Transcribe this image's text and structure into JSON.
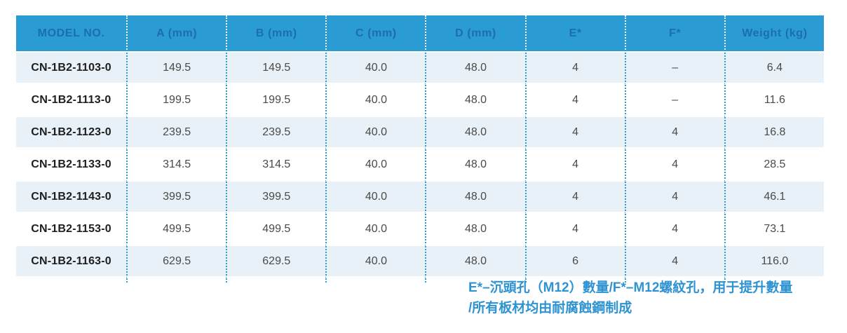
{
  "table": {
    "columns": [
      "MODEL NO.",
      "A (mm)",
      "B (mm)",
      "C (mm)",
      "D (mm)",
      "E*",
      "F*",
      "Weight (kg)"
    ],
    "rows": [
      [
        "CN-1B2-1103-0",
        "149.5",
        "149.5",
        "40.0",
        "48.0",
        "4",
        "–",
        "6.4"
      ],
      [
        "CN-1B2-1113-0",
        "199.5",
        "199.5",
        "40.0",
        "48.0",
        "4",
        "–",
        "11.6"
      ],
      [
        "CN-1B2-1123-0",
        "239.5",
        "239.5",
        "40.0",
        "48.0",
        "4",
        "4",
        "16.8"
      ],
      [
        "CN-1B2-1133-0",
        "314.5",
        "314.5",
        "40.0",
        "48.0",
        "4",
        "4",
        "28.5"
      ],
      [
        "CN-1B2-1143-0",
        "399.5",
        "399.5",
        "40.0",
        "48.0",
        "4",
        "4",
        "46.1"
      ],
      [
        "CN-1B2-1153-0",
        "499.5",
        "499.5",
        "40.0",
        "48.0",
        "4",
        "4",
        "73.1"
      ],
      [
        "CN-1B2-1163-0",
        "629.5",
        "629.5",
        "40.0",
        "48.0",
        "6",
        "4",
        "116.0"
      ]
    ]
  },
  "chart_data": {
    "type": "table",
    "columns": [
      "MODEL NO.",
      "A (mm)",
      "B (mm)",
      "C (mm)",
      "D (mm)",
      "E*",
      "F*",
      "Weight (kg)"
    ],
    "rows": [
      [
        "CN-1B2-1103-0",
        149.5,
        149.5,
        40.0,
        48.0,
        4,
        null,
        6.4
      ],
      [
        "CN-1B2-1113-0",
        199.5,
        199.5,
        40.0,
        48.0,
        4,
        null,
        11.6
      ],
      [
        "CN-1B2-1123-0",
        239.5,
        239.5,
        40.0,
        48.0,
        4,
        4,
        16.8
      ],
      [
        "CN-1B2-1133-0",
        314.5,
        314.5,
        40.0,
        48.0,
        4,
        4,
        28.5
      ],
      [
        "CN-1B2-1143-0",
        399.5,
        399.5,
        40.0,
        48.0,
        4,
        4,
        46.1
      ],
      [
        "CN-1B2-1153-0",
        499.5,
        499.5,
        40.0,
        48.0,
        4,
        4,
        73.1
      ],
      [
        "CN-1B2-1163-0",
        629.5,
        629.5,
        40.0,
        48.0,
        6,
        4,
        116.0
      ]
    ]
  },
  "footnote": {
    "e_label": "E*",
    "e_text": "–沉頭孔（M12）數量/",
    "f_label": "F*",
    "f_text": "–M12螺紋孔，用于提升數量",
    "line2": "/所有板材均由耐腐蝕鋼制成"
  },
  "colors": {
    "header_bg": "#2B9CD3",
    "header_text": "#1A6FAC",
    "row_alt_bg": "#E9F1F8",
    "dot_separator": "#2E9AD0",
    "body_text": "#4A4A48",
    "model_text": "#1E1E1E",
    "footnote_text": "#2E93D2"
  }
}
